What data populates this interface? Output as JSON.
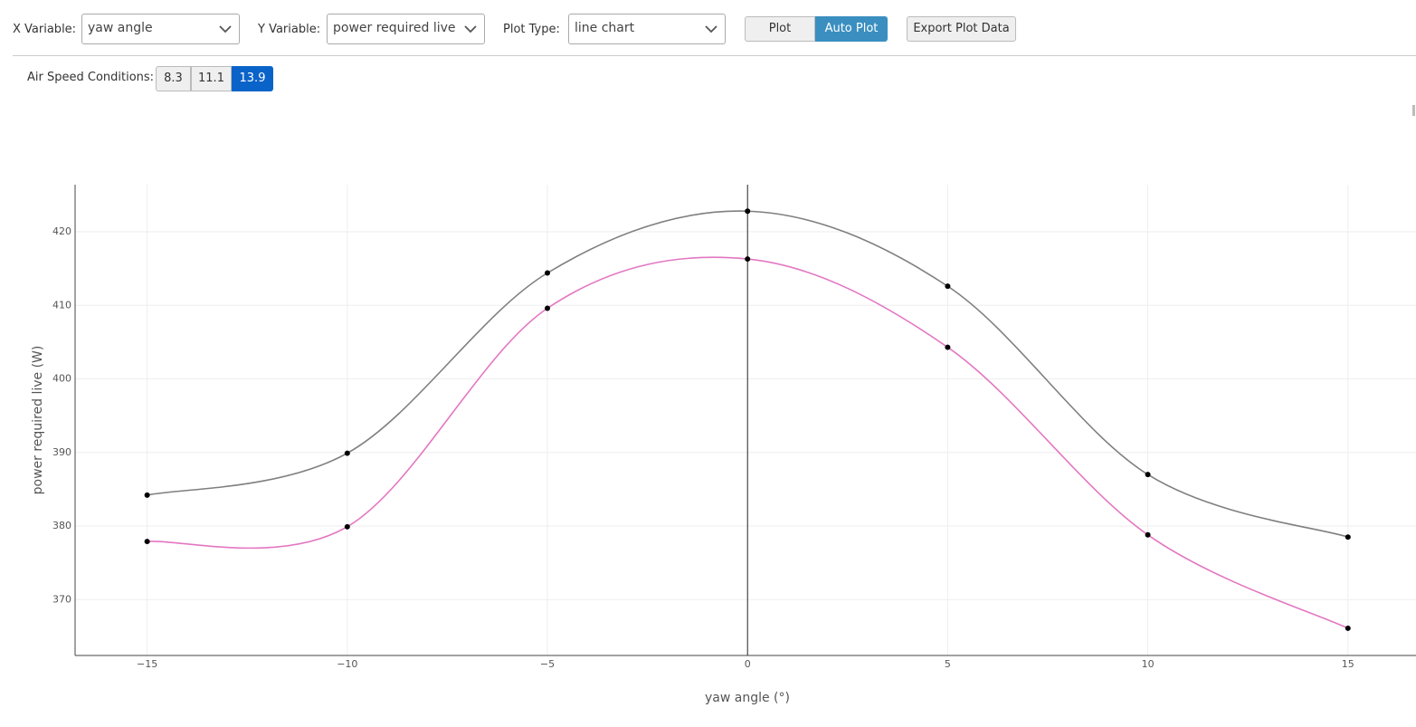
{
  "controls": {
    "x_variable": {
      "label": "X Variable:",
      "value": "yaw angle"
    },
    "y_variable": {
      "label": "Y Variable:",
      "value": "power required live"
    },
    "plot_type": {
      "label": "Plot Type:",
      "value": "line chart"
    },
    "plot_buttons": [
      {
        "label": "Plot",
        "active": false
      },
      {
        "label": "Auto Plot",
        "active": true
      }
    ],
    "export_button": "Export Plot Data",
    "air_speed": {
      "label": "Air Speed Conditions:",
      "options": [
        {
          "label": "8.3",
          "active": false
        },
        {
          "label": "11.1",
          "active": false
        },
        {
          "label": "13.9",
          "active": true
        }
      ]
    }
  },
  "chart_data": {
    "type": "line",
    "smooth": true,
    "markers": true,
    "grid": true,
    "zeroline": true,
    "x_label": "yaw angle (°)",
    "y_label": "power required live (W)",
    "x": [
      -15,
      -10,
      -5,
      0,
      5,
      10,
      15
    ],
    "series": [
      {
        "color": "#7f7f7f",
        "values": [
          384.2,
          389.9,
          414.4,
          422.8,
          412.6,
          387.0,
          378.5
        ]
      },
      {
        "color": "#e377c2",
        "values": [
          377.9,
          379.9,
          409.6,
          416.3,
          404.3,
          378.8,
          366.1
        ]
      }
    ],
    "xlim": [
      -16.8,
      16.7
    ],
    "xticks": [
      {
        "value": -15,
        "label": "−15"
      },
      {
        "value": -10,
        "label": "−10"
      },
      {
        "value": -5,
        "label": "−5"
      },
      0,
      5,
      10,
      15
    ],
    "ylim": [
      362.4,
      426.4
    ],
    "yticks": [
      370,
      380,
      390,
      400,
      410,
      420
    ]
  }
}
